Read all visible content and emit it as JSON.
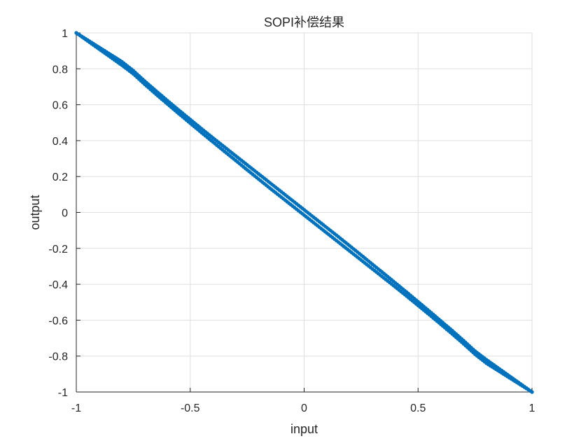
{
  "chart_data": {
    "type": "scatter",
    "title": "SOPI补偿结果",
    "xlabel": "input",
    "ylabel": "output",
    "xlim": [
      -1,
      1
    ],
    "ylim": [
      -1,
      1
    ],
    "xticks": [
      -1,
      -0.5,
      0,
      0.5,
      1
    ],
    "yticks": [
      -1,
      -0.8,
      -0.6,
      -0.4,
      -0.2,
      0,
      0.2,
      0.4,
      0.6,
      0.8,
      1
    ],
    "xtick_labels": [
      "-1",
      "-0.5",
      "0",
      "0.5",
      "1"
    ],
    "ytick_labels": [
      "-1",
      "-0.8",
      "-0.6",
      "-0.4",
      "-0.2",
      "0",
      "0.2",
      "0.4",
      "0.6",
      "0.8",
      "1"
    ],
    "grid": true,
    "marker_color": "#0072BD",
    "series": [
      {
        "x": [
          -1,
          -0.95,
          -0.9,
          -0.85,
          -0.8,
          -0.75,
          -0.7,
          -0.65,
          -0.6,
          -0.55,
          -0.5,
          -0.45,
          -0.4,
          -0.35,
          -0.3,
          -0.25,
          -0.2,
          -0.15,
          -0.1,
          -0.05,
          0,
          0.05,
          0.1,
          0.15,
          0.2,
          0.25,
          0.3,
          0.35,
          0.4,
          0.45,
          0.5,
          0.55,
          0.6,
          0.65,
          0.7,
          0.75,
          0.8,
          0.85,
          0.9,
          0.95,
          1
        ],
        "y": [
          1,
          0.955,
          0.91,
          0.865,
          0.82,
          0.772,
          0.714,
          0.658,
          0.604,
          0.55,
          0.497,
          0.444,
          0.392,
          0.34,
          0.289,
          0.237,
          0.186,
          0.135,
          0.085,
          0.035,
          -0.015,
          -0.065,
          -0.115,
          -0.165,
          -0.215,
          -0.265,
          -0.315,
          -0.365,
          -0.415,
          -0.466,
          -0.518,
          -0.57,
          -0.623,
          -0.677,
          -0.732,
          -0.79,
          -0.84,
          -0.88,
          -0.92,
          -0.96,
          -1
        ]
      },
      {
        "x": [
          -1,
          -0.95,
          -0.9,
          -0.85,
          -0.8,
          -0.75,
          -0.7,
          -0.65,
          -0.6,
          -0.55,
          -0.5,
          -0.45,
          -0.4,
          -0.35,
          -0.3,
          -0.25,
          -0.2,
          -0.15,
          -0.1,
          -0.05,
          0,
          0.05,
          0.1,
          0.15,
          0.2,
          0.25,
          0.3,
          0.35,
          0.4,
          0.45,
          0.5,
          0.55,
          0.6,
          0.65,
          0.7,
          0.75,
          0.8,
          0.85,
          0.9,
          0.95,
          1
        ],
        "y": [
          1,
          0.96,
          0.92,
          0.88,
          0.84,
          0.79,
          0.732,
          0.677,
          0.623,
          0.57,
          0.518,
          0.466,
          0.415,
          0.365,
          0.315,
          0.265,
          0.215,
          0.165,
          0.115,
          0.065,
          0.015,
          -0.035,
          -0.085,
          -0.135,
          -0.186,
          -0.237,
          -0.289,
          -0.34,
          -0.392,
          -0.444,
          -0.497,
          -0.55,
          -0.604,
          -0.658,
          -0.714,
          -0.772,
          -0.82,
          -0.865,
          -0.91,
          -0.955,
          -1
        ]
      }
    ]
  }
}
